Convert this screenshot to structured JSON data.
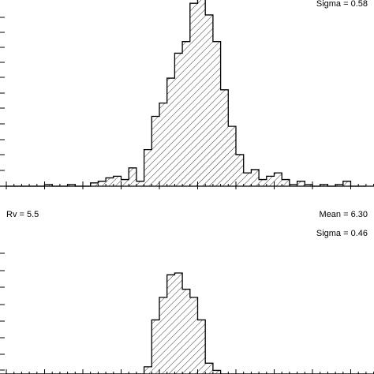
{
  "colors": {
    "ink": "#000000",
    "background": "#ffffff"
  },
  "chart_data": [
    {
      "type": "bar",
      "style": "step histogram with diagonal hatching",
      "title": "",
      "xlabel": "",
      "ylabel": "",
      "annotations": {
        "sigma": "Sigma = 0.58"
      },
      "bins": [
        0,
        1,
        2,
        3,
        4,
        5,
        6,
        7,
        8,
        9,
        10,
        11,
        12,
        13,
        14,
        15,
        16,
        17,
        18,
        19,
        20,
        21,
        22,
        23,
        24,
        25,
        26,
        27,
        28,
        29,
        30,
        31,
        32,
        33,
        34,
        35,
        36,
        37,
        38,
        39,
        40,
        41,
        42,
        43,
        44,
        45,
        46
      ],
      "values": [
        0,
        0,
        0,
        0,
        0,
        1,
        0,
        0,
        1,
        0,
        0,
        2,
        3,
        5,
        6,
        4,
        11,
        3,
        22,
        42,
        50,
        65,
        80,
        87,
        110,
        117,
        103,
        87,
        58,
        36,
        19,
        8,
        10,
        4,
        6,
        8,
        4,
        1,
        3,
        1,
        0,
        1,
        0,
        1,
        3,
        0,
        0
      ],
      "ylim": [
        0,
        112
      ],
      "grid": false
    },
    {
      "type": "bar",
      "style": "step histogram with diagonal hatching",
      "title": "",
      "xlabel": "",
      "ylabel": "",
      "annotations": {
        "rv": "Rv = 5.5",
        "mean": "Mean = 6.30",
        "sigma": "Sigma = 0.46"
      },
      "bins": [
        0,
        1,
        2,
        3,
        4,
        5,
        6,
        7,
        8,
        9,
        10,
        11,
        12,
        13,
        14,
        15,
        16,
        17,
        18,
        19,
        20,
        21,
        22,
        23,
        24,
        25,
        26,
        27,
        28,
        29,
        30,
        31,
        32,
        33,
        34,
        35,
        36,
        37,
        38,
        39,
        40,
        41,
        42,
        43,
        44,
        45,
        46
      ],
      "values": [
        0,
        0,
        0,
        0,
        0,
        0,
        0,
        0,
        0,
        0,
        0,
        0,
        0,
        0,
        0,
        0,
        0,
        0,
        8,
        60,
        85,
        110,
        112,
        94,
        85,
        60,
        12,
        4,
        0,
        0,
        0,
        0,
        0,
        0,
        0,
        0,
        0,
        0,
        0,
        0,
        0,
        0,
        0,
        0,
        0,
        0,
        0
      ],
      "ylim": [
        0,
        140
      ],
      "grid": false
    }
  ]
}
